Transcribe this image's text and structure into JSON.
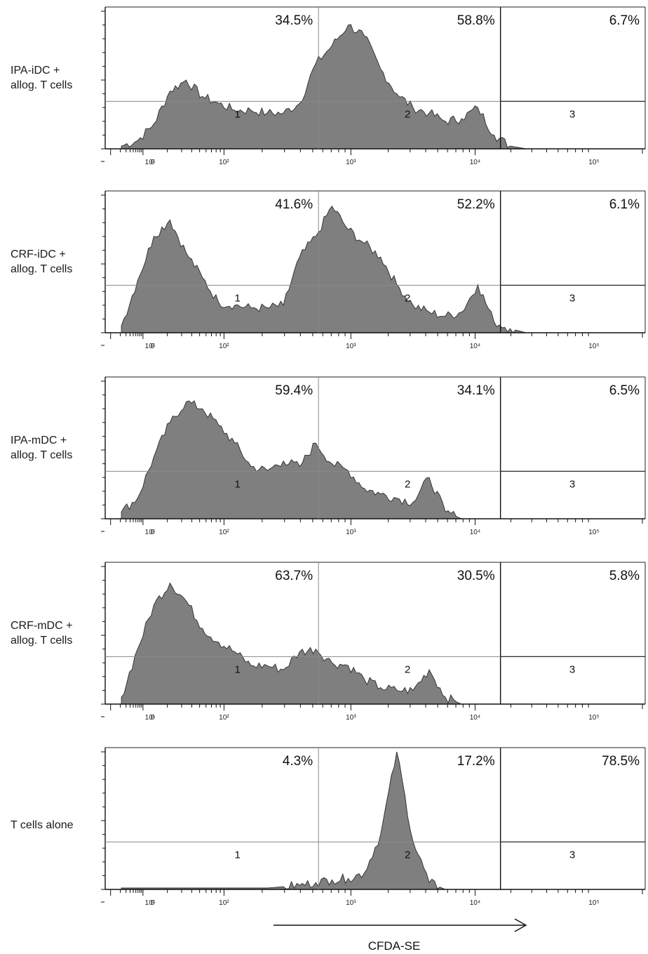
{
  "chart_data": {
    "type": "area",
    "x_label": "CFDA-SE",
    "x_tick_labels": [
      "0",
      "10¹",
      "10²",
      "10³",
      "10⁴",
      "10⁵"
    ],
    "gate_labels": [
      "1",
      "2",
      "3"
    ],
    "panels": [
      {
        "label_lines": [
          "IPA-iDC +",
          "allog. T cells"
        ],
        "gates": [
          "34.5%",
          "58.8%",
          "6.7%"
        ],
        "x": [
          0.03,
          0.06,
          0.09,
          0.12,
          0.15,
          0.18,
          0.21,
          0.24,
          0.27,
          0.3,
          0.33,
          0.36,
          0.39,
          0.42,
          0.45,
          0.48,
          0.51,
          0.54,
          0.57,
          0.6,
          0.63,
          0.66,
          0.69,
          0.72,
          0.75,
          0.78,
          0.81,
          0.84,
          0.87,
          0.9,
          0.93
        ],
        "y": [
          0.02,
          0.06,
          0.18,
          0.42,
          0.5,
          0.38,
          0.33,
          0.28,
          0.28,
          0.26,
          0.26,
          0.33,
          0.62,
          0.75,
          0.9,
          0.82,
          0.58,
          0.4,
          0.3,
          0.26,
          0.2,
          0.22,
          0.3,
          0.1,
          0.02,
          0,
          0,
          0,
          0,
          0,
          0
        ]
      },
      {
        "label_lines": [
          "CRF-iDC +",
          "allog. T cells"
        ],
        "gates": [
          "41.6%",
          "52.2%",
          "6.1%"
        ],
        "x": [
          0.03,
          0.06,
          0.09,
          0.12,
          0.15,
          0.18,
          0.21,
          0.24,
          0.27,
          0.3,
          0.33,
          0.36,
          0.39,
          0.42,
          0.45,
          0.48,
          0.51,
          0.54,
          0.57,
          0.6,
          0.63,
          0.66,
          0.69,
          0.72,
          0.75,
          0.78,
          0.81,
          0.84,
          0.87,
          0.9,
          0.93
        ],
        "y": [
          0.05,
          0.38,
          0.7,
          0.82,
          0.58,
          0.4,
          0.22,
          0.2,
          0.18,
          0.18,
          0.2,
          0.55,
          0.7,
          0.92,
          0.75,
          0.65,
          0.55,
          0.35,
          0.2,
          0.15,
          0.12,
          0.15,
          0.35,
          0.08,
          0.03,
          0,
          0,
          0,
          0,
          0,
          0
        ]
      },
      {
        "label_lines": [
          "IPA-mDC +",
          "allog. T cells"
        ],
        "gates": [
          "59.4%",
          "34.1%",
          "6.5%"
        ],
        "x": [
          0.03,
          0.06,
          0.09,
          0.12,
          0.15,
          0.18,
          0.21,
          0.24,
          0.27,
          0.3,
          0.33,
          0.36,
          0.39,
          0.42,
          0.45,
          0.48,
          0.51,
          0.54,
          0.57,
          0.6,
          0.63,
          0.66,
          0.69,
          0.72,
          0.75,
          0.78,
          0.81,
          0.84,
          0.87,
          0.9,
          0.93
        ],
        "y": [
          0.05,
          0.15,
          0.45,
          0.7,
          0.85,
          0.8,
          0.68,
          0.55,
          0.38,
          0.35,
          0.42,
          0.38,
          0.55,
          0.4,
          0.35,
          0.22,
          0.18,
          0.15,
          0.12,
          0.3,
          0.05,
          0,
          0,
          0,
          0,
          0,
          0,
          0,
          0,
          0,
          0
        ]
      },
      {
        "label_lines": [
          "CRF-mDC +",
          "allog. T cells"
        ],
        "gates": [
          "63.7%",
          "30.5%",
          "5.8%"
        ],
        "x": [
          0.03,
          0.06,
          0.09,
          0.12,
          0.15,
          0.18,
          0.21,
          0.24,
          0.27,
          0.3,
          0.33,
          0.36,
          0.39,
          0.42,
          0.45,
          0.48,
          0.51,
          0.54,
          0.57,
          0.6,
          0.63,
          0.66,
          0.69,
          0.72,
          0.75,
          0.78,
          0.81,
          0.84,
          0.87,
          0.9,
          0.93
        ],
        "y": [
          0.05,
          0.4,
          0.72,
          0.88,
          0.75,
          0.55,
          0.45,
          0.38,
          0.28,
          0.28,
          0.25,
          0.38,
          0.4,
          0.3,
          0.28,
          0.18,
          0.12,
          0.1,
          0.1,
          0.25,
          0.05,
          0,
          0,
          0,
          0,
          0,
          0,
          0,
          0,
          0,
          0
        ]
      },
      {
        "label_lines": [
          "T cells alone"
        ],
        "gates": [
          "4.3%",
          "17.2%",
          "78.5%"
        ],
        "x": [
          0.03,
          0.06,
          0.09,
          0.12,
          0.15,
          0.18,
          0.21,
          0.24,
          0.27,
          0.3,
          0.33,
          0.36,
          0.39,
          0.42,
          0.45,
          0.48,
          0.51,
          0.54,
          0.57,
          0.6,
          0.63,
          0.66,
          0.69,
          0.72,
          0.75,
          0.78,
          0.81,
          0.84,
          0.87,
          0.9,
          0.93
        ],
        "y": [
          0.01,
          0.01,
          0.01,
          0.01,
          0.01,
          0.01,
          0.01,
          0.01,
          0.01,
          0.01,
          0.02,
          0.03,
          0.05,
          0.07,
          0.08,
          0.12,
          0.4,
          1.0,
          0.35,
          0.05,
          0,
          0,
          0,
          0,
          0,
          0,
          0,
          0,
          0,
          0,
          0
        ]
      }
    ]
  }
}
